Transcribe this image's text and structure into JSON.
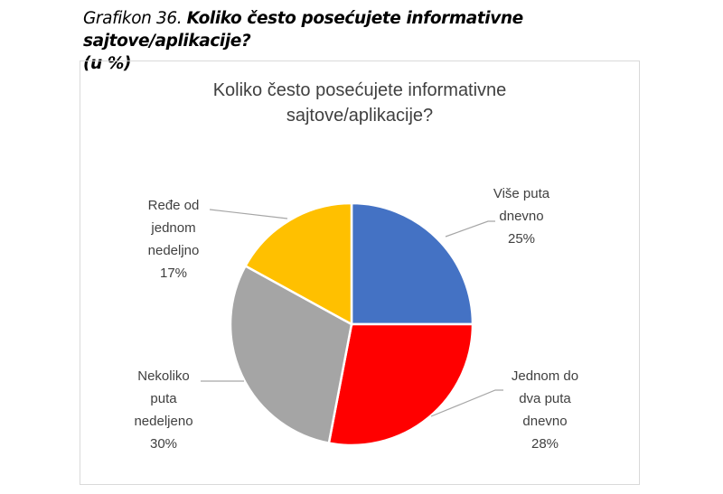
{
  "caption": {
    "prefix": "Grafikon 36. ",
    "title": "Koliko često posećujete informativne sajtove/aplikacije?",
    "unit": "(u %)"
  },
  "chart_data": {
    "type": "pie",
    "title_line1": "Koliko često posećujete informativne",
    "title_line2": "sajtove/aplikacije?",
    "start": "top, clockwise",
    "slices": [
      {
        "label": [
          "Više puta",
          "dnevno"
        ],
        "value": 25,
        "value_label": "25%",
        "color": "#4472C4"
      },
      {
        "label": [
          "Jednom do",
          "dva puta",
          "dnevno"
        ],
        "value": 28,
        "value_label": "28%",
        "color": "#FF0000"
      },
      {
        "label": [
          "Nekoliko",
          "puta",
          "nedeljeno"
        ],
        "value": 30,
        "value_label": "30%",
        "color": "#A5A5A5"
      },
      {
        "label": [
          "Ređe od",
          "jednom",
          "nedeljno"
        ],
        "value": 17,
        "value_label": "17%",
        "color": "#FFC000"
      }
    ],
    "legend": "none",
    "data_labels": "outside with leader lines"
  }
}
